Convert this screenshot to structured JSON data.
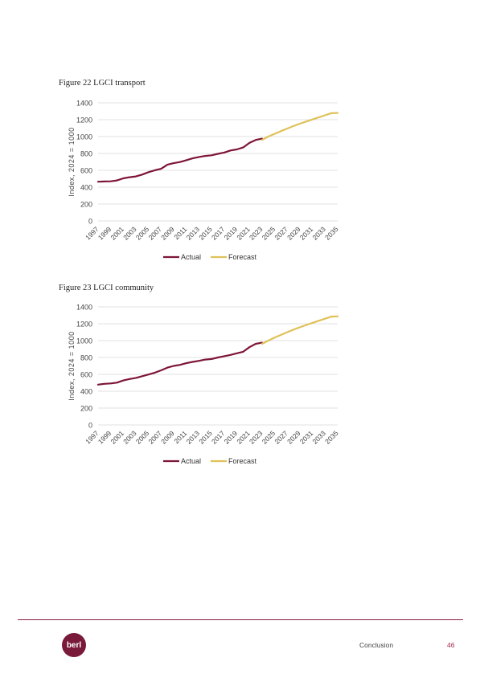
{
  "chart_data": [
    {
      "type": "line",
      "title": "Figure 22 LGCI transport",
      "ylabel": "Index, 2024 = 1000",
      "ylim": [
        0,
        1400
      ],
      "yticks": [
        "0",
        "200",
        "400",
        "600",
        "800",
        "1000",
        "1200",
        "1400"
      ],
      "xticks": [
        "1997",
        "1999",
        "2001",
        "2003",
        "2005",
        "2007",
        "2009",
        "2011",
        "2013",
        "2015",
        "2017",
        "2019",
        "2021",
        "2023",
        "2025",
        "2027",
        "2029",
        "2031",
        "2033",
        "2035"
      ],
      "grid": true,
      "legend": "bottom-center",
      "series": [
        {
          "name": "Actual",
          "color": "#7d1538",
          "x": [
            1997,
            1998,
            1999,
            2000,
            2001,
            2002,
            2003,
            2004,
            2005,
            2006,
            2007,
            2008,
            2009,
            2010,
            2011,
            2012,
            2013,
            2014,
            2015,
            2016,
            2017,
            2018,
            2019,
            2020,
            2021,
            2022,
            2023
          ],
          "y": [
            465,
            468,
            470,
            480,
            505,
            518,
            528,
            550,
            578,
            600,
            618,
            668,
            685,
            698,
            720,
            742,
            758,
            770,
            778,
            795,
            810,
            835,
            848,
            870,
            925,
            960,
            975
          ]
        },
        {
          "name": "Forecast",
          "color": "#e0c158",
          "x": [
            2023,
            2024,
            2025,
            2026,
            2027,
            2028,
            2029,
            2030,
            2031,
            2032,
            2033,
            2034,
            2035
          ],
          "y": [
            960,
            1000,
            1032,
            1065,
            1095,
            1125,
            1152,
            1178,
            1203,
            1228,
            1252,
            1278,
            1280
          ]
        }
      ]
    },
    {
      "type": "line",
      "title": "Figure 23 LGCI community",
      "ylabel": "Index, 2024 = 1000",
      "ylim": [
        0,
        1400
      ],
      "yticks": [
        "0",
        "200",
        "400",
        "600",
        "800",
        "1000",
        "1200",
        "1400"
      ],
      "xticks": [
        "1997",
        "1999",
        "2001",
        "2003",
        "2005",
        "2007",
        "2009",
        "2011",
        "2013",
        "2015",
        "2017",
        "2019",
        "2021",
        "2023",
        "2025",
        "2027",
        "2029",
        "2031",
        "2033",
        "2035"
      ],
      "grid": true,
      "legend": "bottom-center",
      "series": [
        {
          "name": "Actual",
          "color": "#7d1538",
          "x": [
            1997,
            1998,
            1999,
            2000,
            2001,
            2002,
            2003,
            2004,
            2005,
            2006,
            2007,
            2008,
            2009,
            2010,
            2011,
            2012,
            2013,
            2014,
            2015,
            2016,
            2017,
            2018,
            2019,
            2020,
            2021,
            2022,
            2023
          ],
          "y": [
            478,
            488,
            492,
            502,
            528,
            545,
            558,
            578,
            598,
            620,
            648,
            680,
            700,
            712,
            732,
            748,
            760,
            775,
            782,
            800,
            815,
            830,
            850,
            868,
            922,
            962,
            975
          ]
        },
        {
          "name": "Forecast",
          "color": "#e0c158",
          "x": [
            2023,
            2024,
            2025,
            2026,
            2027,
            2028,
            2029,
            2030,
            2031,
            2032,
            2033,
            2034,
            2035
          ],
          "y": [
            962,
            1000,
            1035,
            1068,
            1100,
            1130,
            1158,
            1185,
            1210,
            1235,
            1260,
            1285,
            1288
          ]
        }
      ]
    }
  ],
  "footer": {
    "logo_text": "berl",
    "section": "Conclusion",
    "page_number": "46"
  }
}
